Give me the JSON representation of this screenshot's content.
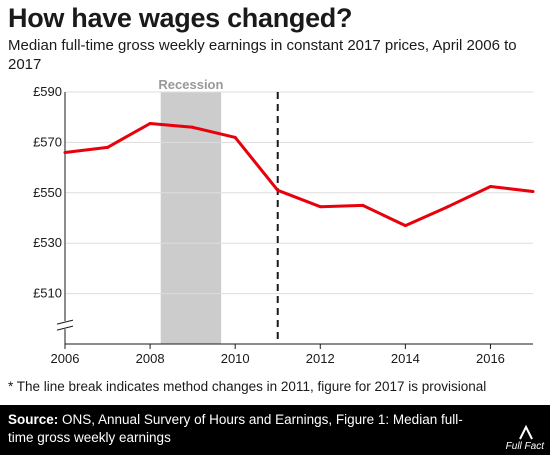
{
  "title": "How have wages changed?",
  "subtitle": "Median full-time gross weekly earnings in constant 2017 prices, April 2006 to 2017",
  "chart_data": {
    "type": "line",
    "title": "How have wages changed?",
    "subtitle": "Median full-time gross weekly earnings in constant 2017 prices, April 2006 to 2017",
    "x": [
      2006,
      2007,
      2008,
      2009,
      2010,
      2011,
      2012,
      2013,
      2014,
      2015,
      2016,
      2017
    ],
    "series": [
      {
        "values": [
          566,
          568,
          577.5,
          576,
          572,
          551,
          544.5,
          545,
          537,
          544.5,
          552.5,
          550.5
        ]
      }
    ],
    "xlim": [
      2006,
      2017
    ],
    "ylim": [
      490,
      590
    ],
    "y_ticks": [
      510,
      530,
      550,
      570,
      590
    ],
    "y_tick_labels": [
      "£510",
      "£530",
      "£550",
      "£570",
      "£590"
    ],
    "x_ticks": [
      2006,
      2008,
      2010,
      2012,
      2014,
      2016
    ],
    "x_tick_labels": [
      "2006",
      "2008",
      "2010",
      "2012",
      "2014",
      "2016"
    ],
    "axis_break": true,
    "grid": "horizontal",
    "line_color": "#e8000b",
    "recession": {
      "label": "Recession",
      "start": 2008.25,
      "end": 2009.67,
      "color": "#cccccc"
    },
    "method_break_x": 2011
  },
  "footnote": "* The line break indicates method changes in 2011, figure for 2017 is provisional",
  "footer": {
    "source_label": "Source:",
    "source_text": " ONS, Annual Survery of Hours and Earnings, Figure 1: Median full-time gross weekly earnings",
    "logo": "Full Fact"
  }
}
